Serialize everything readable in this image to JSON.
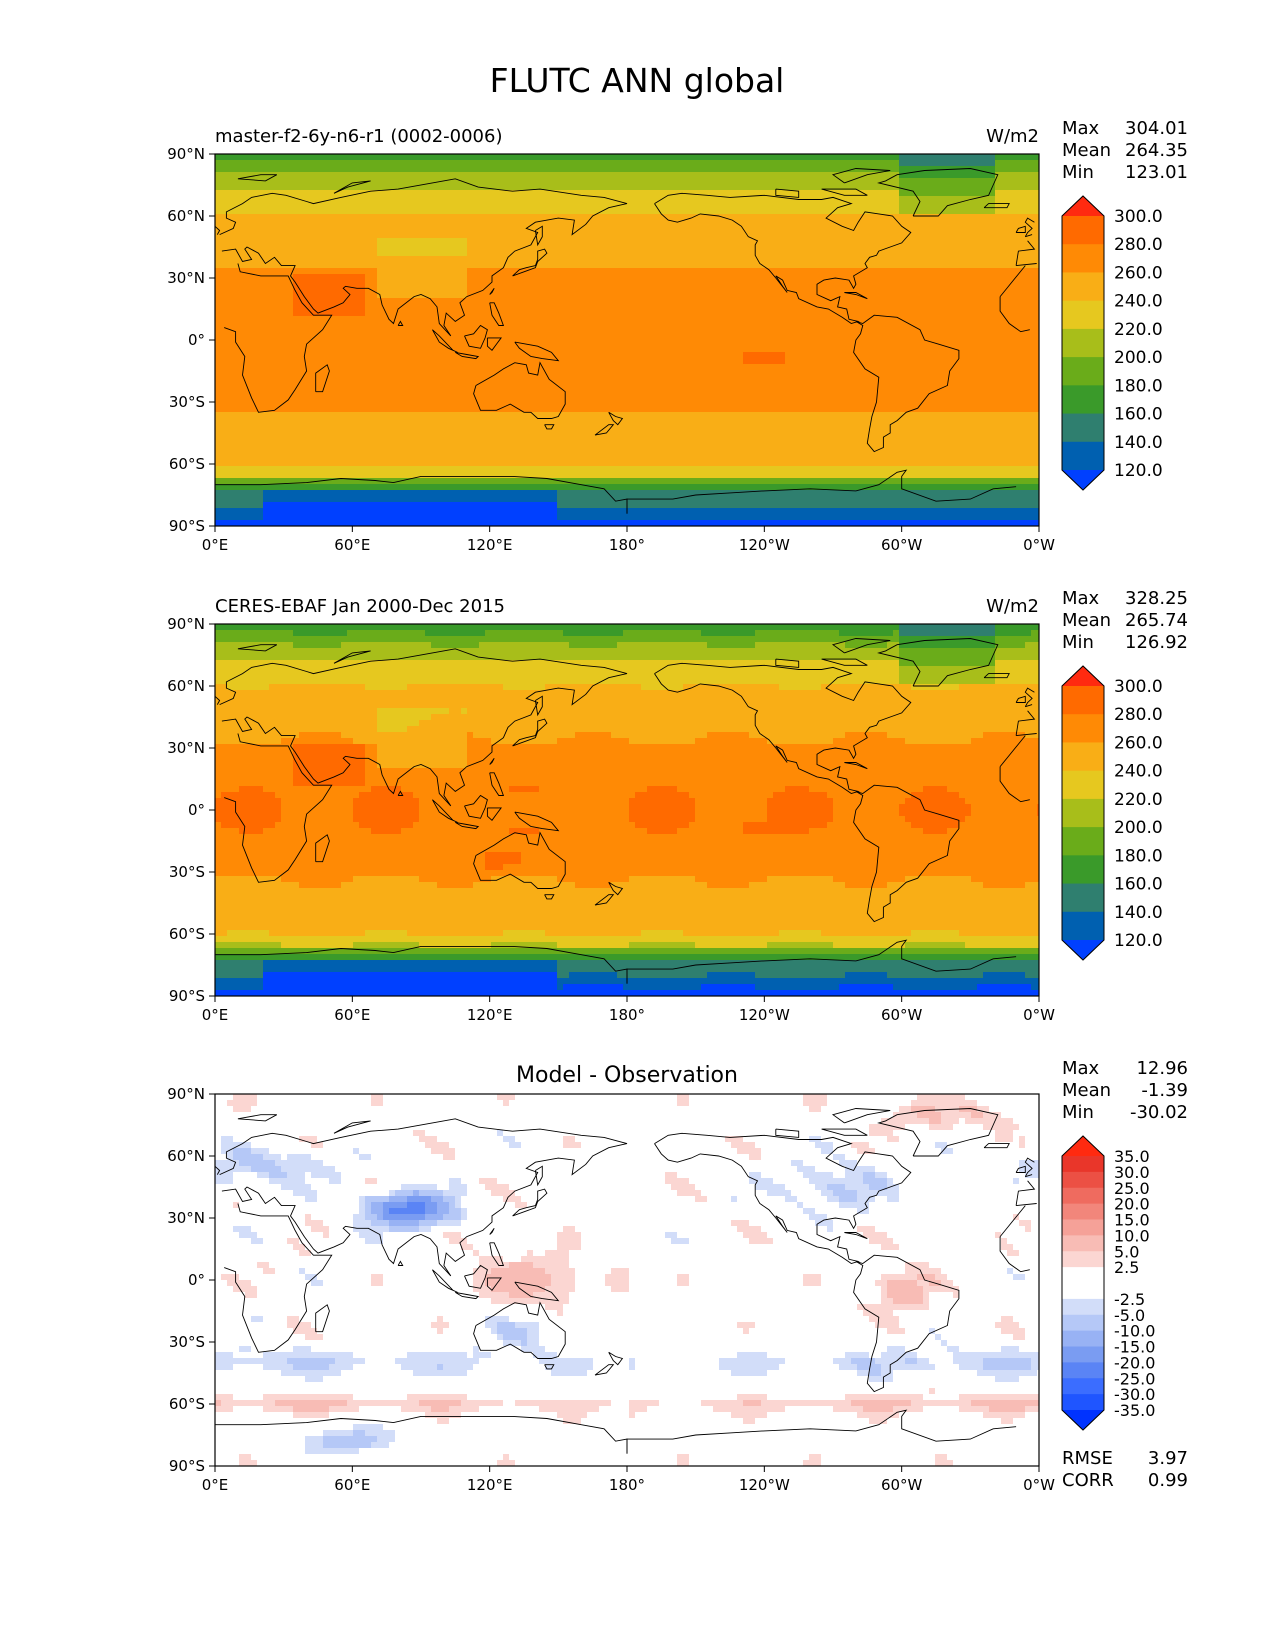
{
  "title": "FLUTC ANN global",
  "colors": {
    "abs_levels": [
      "#0040ff",
      "#0060b0",
      "#2f7f6f",
      "#3a9a2a",
      "#6aac1a",
      "#a8be1a",
      "#e6c81f",
      "#f9ae16",
      "#ff8a05",
      "#ff6a00",
      "#ff2a10"
    ],
    "diff_levels": [
      "#0033ff",
      "#1f55ff",
      "#3b6dff",
      "#5a84f5",
      "#7a9cf2",
      "#98b2f4",
      "#b5c8f7",
      "#d2ddf9",
      "#ffffff",
      "#ffffff",
      "#fbd6d2",
      "#f8bcb5",
      "#f5a198",
      "#f2867b",
      "#ef6b5f",
      "#ec5044",
      "#e9362a",
      "#ff2a10"
    ],
    "coast": "#000000"
  },
  "panels": [
    {
      "id": "test",
      "title_left": "master-f2-6y-n6-r1 (0002-0006)",
      "title_center": "",
      "units": "W/m2",
      "stats": [
        {
          "label": "Max",
          "value": "304.01"
        },
        {
          "label": "Mean",
          "value": "264.35"
        },
        {
          "label": "Min",
          "value": "123.01"
        }
      ],
      "colorbar_ticks": [
        "120.0",
        "140.0",
        "160.0",
        "180.0",
        "200.0",
        "220.0",
        "240.0",
        "260.0",
        "280.0",
        "300.0"
      ],
      "extra_stats": []
    },
    {
      "id": "ref",
      "title_left": "CERES-EBAF Jan 2000-Dec 2015",
      "title_center": "",
      "units": "W/m2",
      "stats": [
        {
          "label": "Max",
          "value": "328.25"
        },
        {
          "label": "Mean",
          "value": "265.74"
        },
        {
          "label": "Min",
          "value": "126.92"
        }
      ],
      "colorbar_ticks": [
        "120.0",
        "140.0",
        "160.0",
        "180.0",
        "200.0",
        "220.0",
        "240.0",
        "260.0",
        "280.0",
        "300.0"
      ],
      "extra_stats": []
    },
    {
      "id": "diff",
      "title_left": "",
      "title_center": "Model - Observation",
      "units": "",
      "stats": [
        {
          "label": "Max",
          "value": "12.96"
        },
        {
          "label": "Mean",
          "value": "-1.39"
        },
        {
          "label": "Min",
          "value": "-30.02"
        }
      ],
      "colorbar_ticks": [
        "-35.0",
        "-30.0",
        "-25.0",
        "-20.0",
        "-15.0",
        "-10.0",
        "-5.0",
        "-2.5",
        "2.5",
        "5.0",
        "10.0",
        "15.0",
        "20.0",
        "25.0",
        "30.0",
        "35.0"
      ],
      "extra_stats": [
        {
          "label": "RMSE",
          "value": "3.97"
        },
        {
          "label": "CORR",
          "value": "0.99"
        }
      ]
    }
  ],
  "x_ticks": [
    "0°E",
    "60°E",
    "120°E",
    "180°",
    "120°W",
    "60°W",
    "0°W"
  ],
  "y_ticks": [
    "90°N",
    "60°N",
    "30°N",
    "0°",
    "30°S",
    "60°S",
    "90°S"
  ]
}
